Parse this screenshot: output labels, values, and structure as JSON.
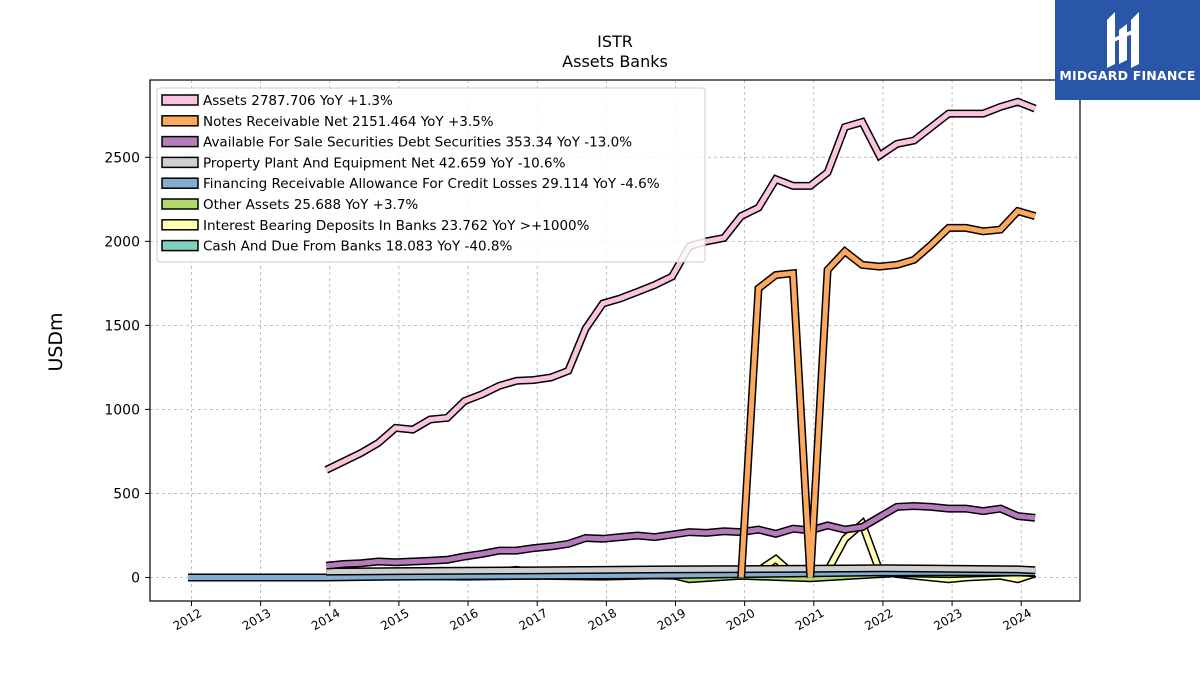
{
  "chart_data": {
    "type": "line",
    "title": "ISTR",
    "subtitle": "Assets Banks",
    "ylabel": "USDm",
    "xlabel": "",
    "xlim": [
      2011.4,
      2024.85
    ],
    "ylim": [
      -140,
      2960
    ],
    "x_ticks": [
      "2012",
      "2013",
      "2014",
      "2015",
      "2016",
      "2017",
      "2018",
      "2019",
      "2020",
      "2021",
      "2022",
      "2023",
      "2024"
    ],
    "y_ticks": [
      0,
      500,
      1000,
      1500,
      2000,
      2500
    ],
    "grid": true,
    "legend_position": "top-left",
    "series": [
      {
        "name": "Assets",
        "legend": "Assets  2787.706 YoY +1.3%",
        "color": "#fbc4de",
        "points": [
          [
            2013.95,
            640
          ],
          [
            2014.2,
            690
          ],
          [
            2014.45,
            740
          ],
          [
            2014.7,
            800
          ],
          [
            2014.95,
            890
          ],
          [
            2015.2,
            880
          ],
          [
            2015.45,
            940
          ],
          [
            2015.7,
            950
          ],
          [
            2015.95,
            1050
          ],
          [
            2016.2,
            1090
          ],
          [
            2016.45,
            1140
          ],
          [
            2016.7,
            1170
          ],
          [
            2016.95,
            1175
          ],
          [
            2017.2,
            1190
          ],
          [
            2017.45,
            1230
          ],
          [
            2017.7,
            1480
          ],
          [
            2017.95,
            1630
          ],
          [
            2018.2,
            1660
          ],
          [
            2018.45,
            1700
          ],
          [
            2018.7,
            1740
          ],
          [
            2018.95,
            1790
          ],
          [
            2019.2,
            1970
          ],
          [
            2019.45,
            2000
          ],
          [
            2019.7,
            2020
          ],
          [
            2019.95,
            2150
          ],
          [
            2020.2,
            2200
          ],
          [
            2020.45,
            2370
          ],
          [
            2020.7,
            2330
          ],
          [
            2020.95,
            2330
          ],
          [
            2021.2,
            2410
          ],
          [
            2021.45,
            2680
          ],
          [
            2021.7,
            2710
          ],
          [
            2021.95,
            2510
          ],
          [
            2022.2,
            2580
          ],
          [
            2022.45,
            2600
          ],
          [
            2022.7,
            2680
          ],
          [
            2022.95,
            2760
          ],
          [
            2023.2,
            2760
          ],
          [
            2023.45,
            2760
          ],
          [
            2023.7,
            2800
          ],
          [
            2023.95,
            2830
          ],
          [
            2024.2,
            2790
          ]
        ]
      },
      {
        "name": "Notes Receivable Net",
        "legend": "Notes Receivable Net  2151.464 YoY +3.5%",
        "color": "#fba95e",
        "points": [
          [
            2019.95,
            0
          ],
          [
            2020.2,
            1720
          ],
          [
            2020.45,
            1800
          ],
          [
            2020.7,
            1810
          ],
          [
            2020.95,
            0
          ],
          [
            2021.2,
            1830
          ],
          [
            2021.45,
            1940
          ],
          [
            2021.7,
            1860
          ],
          [
            2021.95,
            1850
          ],
          [
            2022.2,
            1860
          ],
          [
            2022.45,
            1890
          ],
          [
            2022.7,
            1980
          ],
          [
            2022.95,
            2080
          ],
          [
            2023.2,
            2080
          ],
          [
            2023.45,
            2060
          ],
          [
            2023.7,
            2070
          ],
          [
            2023.95,
            2180
          ],
          [
            2024.2,
            2150
          ]
        ]
      },
      {
        "name": "Available For Sale Securities Debt Securities",
        "legend": "Available For Sale Securities Debt Securities  353.34 YoY -13.0%",
        "color": "#b77bbc",
        "points": [
          [
            2013.95,
            70
          ],
          [
            2014.2,
            80
          ],
          [
            2014.45,
            85
          ],
          [
            2014.7,
            95
          ],
          [
            2014.95,
            90
          ],
          [
            2015.2,
            95
          ],
          [
            2015.45,
            100
          ],
          [
            2015.7,
            105
          ],
          [
            2015.95,
            125
          ],
          [
            2016.2,
            140
          ],
          [
            2016.45,
            160
          ],
          [
            2016.7,
            160
          ],
          [
            2016.95,
            175
          ],
          [
            2017.2,
            185
          ],
          [
            2017.45,
            200
          ],
          [
            2017.7,
            235
          ],
          [
            2017.95,
            230
          ],
          [
            2018.2,
            240
          ],
          [
            2018.45,
            250
          ],
          [
            2018.7,
            240
          ],
          [
            2018.95,
            255
          ],
          [
            2019.2,
            270
          ],
          [
            2019.45,
            265
          ],
          [
            2019.7,
            275
          ],
          [
            2019.95,
            270
          ],
          [
            2020.2,
            285
          ],
          [
            2020.45,
            260
          ],
          [
            2020.7,
            290
          ],
          [
            2020.95,
            280
          ],
          [
            2021.2,
            310
          ],
          [
            2021.45,
            285
          ],
          [
            2021.7,
            300
          ],
          [
            2021.95,
            360
          ],
          [
            2022.2,
            420
          ],
          [
            2022.45,
            425
          ],
          [
            2022.7,
            420
          ],
          [
            2022.95,
            410
          ],
          [
            2023.2,
            410
          ],
          [
            2023.45,
            395
          ],
          [
            2023.7,
            410
          ],
          [
            2023.95,
            365
          ],
          [
            2024.2,
            355
          ]
        ]
      },
      {
        "name": "Property Plant And Equipment Net",
        "legend": "Property Plant And Equipment Net  42.659 YoY -10.6%",
        "color": "#cfcfcf",
        "points": [
          [
            2013.95,
            35
          ],
          [
            2014.95,
            38
          ],
          [
            2015.95,
            40
          ],
          [
            2016.95,
            42
          ],
          [
            2017.95,
            45
          ],
          [
            2018.95,
            48
          ],
          [
            2019.95,
            50
          ],
          [
            2020.95,
            52
          ],
          [
            2021.95,
            55
          ],
          [
            2022.95,
            52
          ],
          [
            2023.95,
            48
          ],
          [
            2024.2,
            43
          ]
        ]
      },
      {
        "name": "Financing Receivable Allowance For Credit Losses",
        "legend": "Financing Receivable Allowance For Credit Losses  29.114 YoY -4.6%",
        "color": "#82aed2",
        "points": [
          [
            2011.95,
            0
          ],
          [
            2013.95,
            0
          ],
          [
            2014.95,
            5
          ],
          [
            2015.95,
            8
          ],
          [
            2016.95,
            10
          ],
          [
            2017.95,
            12
          ],
          [
            2018.95,
            15
          ],
          [
            2019.95,
            20
          ],
          [
            2020.95,
            25
          ],
          [
            2021.95,
            30
          ],
          [
            2022.95,
            32
          ],
          [
            2023.95,
            30
          ],
          [
            2024.2,
            29
          ]
        ]
      },
      {
        "name": "Other Assets",
        "legend": "Other Assets  25.688 YoY +3.7%",
        "color": "#b3d96b",
        "points": [
          [
            2013.95,
            15
          ],
          [
            2014.95,
            10
          ],
          [
            2015.95,
            5
          ],
          [
            2016.95,
            10
          ],
          [
            2017.95,
            5
          ],
          [
            2018.95,
            15
          ],
          [
            2019.2,
            -10
          ],
          [
            2019.95,
            10
          ],
          [
            2020.95,
            -5
          ],
          [
            2021.95,
            20
          ],
          [
            2022.2,
            25
          ],
          [
            2022.95,
            20
          ],
          [
            2023.95,
            30
          ],
          [
            2024.2,
            26
          ]
        ]
      },
      {
        "name": "Interest Bearing Deposits In Banks",
        "legend": "Interest Bearing Deposits In Banks  23.762 YoY >+1000%",
        "color": "#ffffb3",
        "points": [
          [
            2013.95,
            5
          ],
          [
            2014.95,
            10
          ],
          [
            2015.95,
            20
          ],
          [
            2016.7,
            45
          ],
          [
            2016.95,
            30
          ],
          [
            2017.95,
            20
          ],
          [
            2018.95,
            10
          ],
          [
            2019.95,
            10
          ],
          [
            2020.2,
            40
          ],
          [
            2020.45,
            110
          ],
          [
            2020.7,
            20
          ],
          [
            2020.95,
            10
          ],
          [
            2021.2,
            40
          ],
          [
            2021.45,
            230
          ],
          [
            2021.7,
            320
          ],
          [
            2021.95,
            40
          ],
          [
            2022.2,
            20
          ],
          [
            2022.45,
            10
          ],
          [
            2022.7,
            0
          ],
          [
            2022.95,
            -10
          ],
          [
            2023.2,
            0
          ],
          [
            2023.45,
            5
          ],
          [
            2023.7,
            10
          ],
          [
            2023.95,
            -10
          ],
          [
            2024.2,
            24
          ]
        ]
      },
      {
        "name": "Cash And Due From Banks",
        "legend": "Cash And Due From Banks  18.083 YoY -40.8%",
        "color": "#7fd0c0",
        "points": [
          [
            2013.95,
            20
          ],
          [
            2014.95,
            15
          ],
          [
            2015.95,
            15
          ],
          [
            2016.95,
            20
          ],
          [
            2017.95,
            15
          ],
          [
            2018.95,
            15
          ],
          [
            2019.95,
            20
          ],
          [
            2020.95,
            25
          ],
          [
            2021.45,
            40
          ],
          [
            2021.95,
            40
          ],
          [
            2022.2,
            50
          ],
          [
            2022.95,
            40
          ],
          [
            2023.45,
            40
          ],
          [
            2023.95,
            30
          ],
          [
            2024.2,
            18
          ]
        ]
      }
    ]
  },
  "logo": {
    "text": "MIDGARD FINANCE",
    "background": "#2a56a8"
  }
}
